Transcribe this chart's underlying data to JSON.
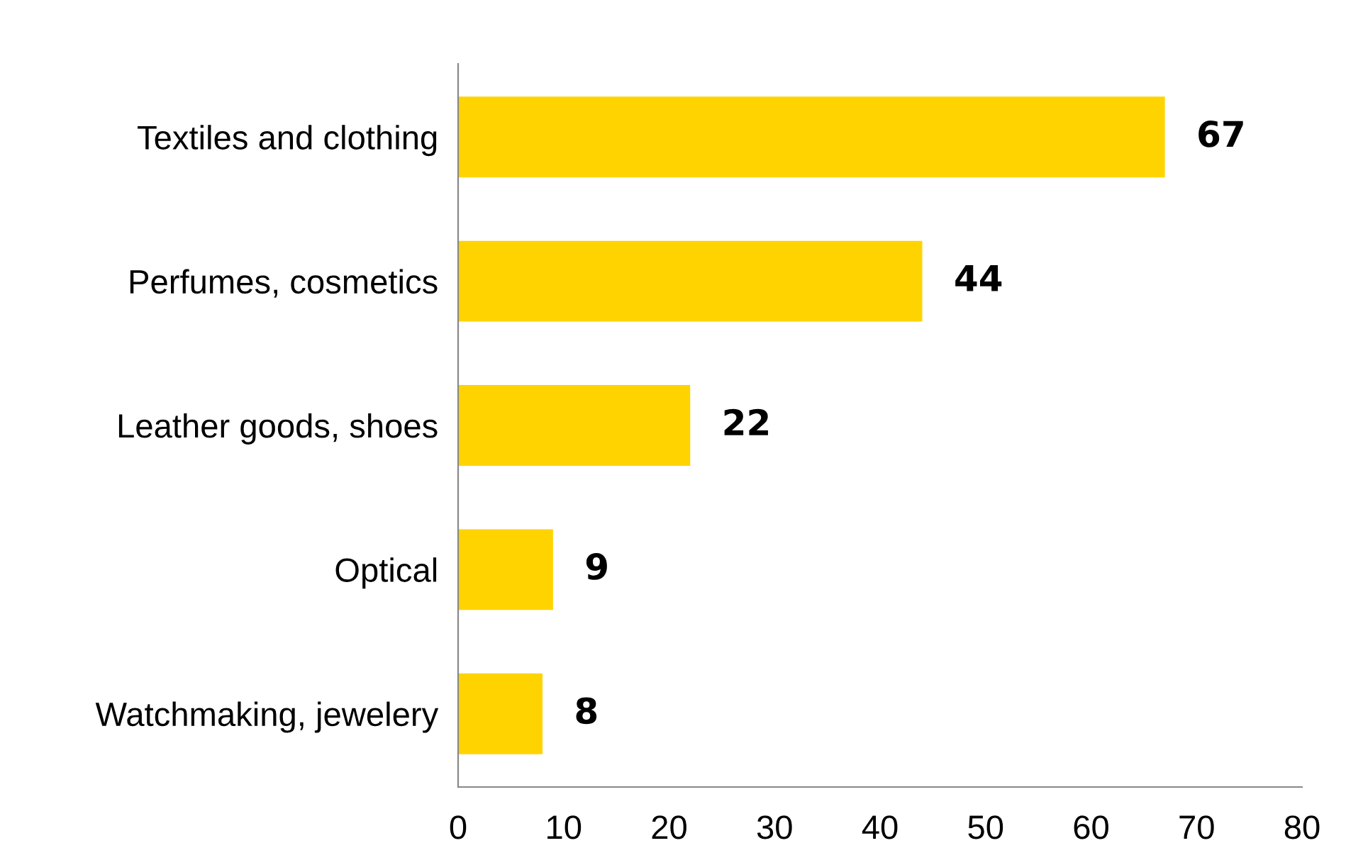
{
  "chart_data": {
    "type": "bar",
    "orientation": "horizontal",
    "categories": [
      "Textiles and clothing",
      "Perfumes, cosmetics",
      "Leather goods, shoes",
      "Optical",
      "Watchmaking, jewelery"
    ],
    "values": [
      67,
      44,
      22,
      9,
      8
    ],
    "color": "#ffd300",
    "xlim": [
      0,
      80
    ],
    "xticks": [
      0,
      10,
      20,
      30,
      40,
      50,
      60,
      70,
      80
    ],
    "data_labels": true,
    "grid": false,
    "legend": false
  }
}
